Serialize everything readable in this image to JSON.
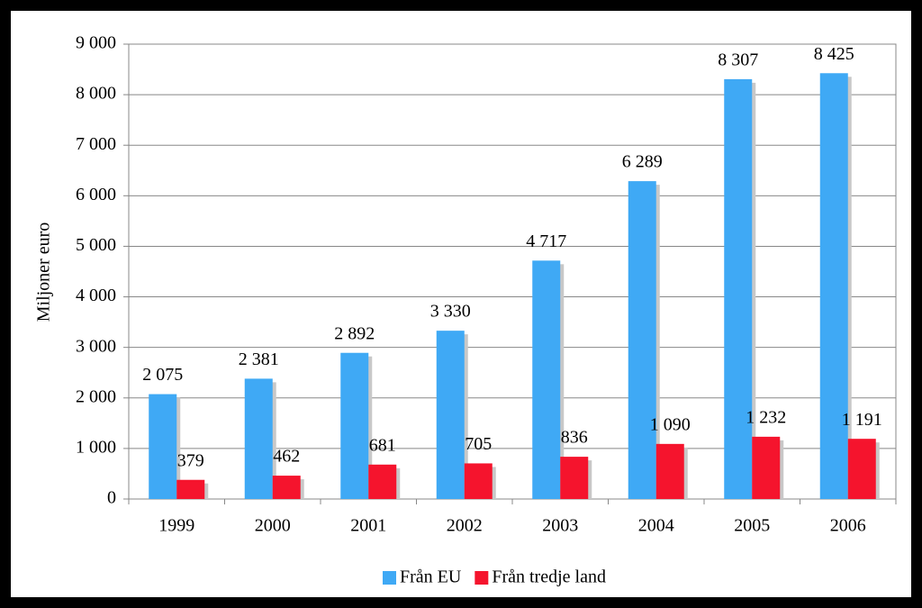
{
  "chart_data": {
    "type": "bar",
    "y_label": "Miljoner euro",
    "categories": [
      "1999",
      "2000",
      "2001",
      "2002",
      "2003",
      "2004",
      "2005",
      "2006"
    ],
    "series": [
      {
        "name": "Från EU",
        "color": "#3fa9f5",
        "values": [
          2075,
          2381,
          2892,
          3330,
          4717,
          6289,
          8307,
          8425
        ],
        "value_labels": [
          "2 075",
          "2 381",
          "2 892",
          "3 330",
          "4 717",
          "6 289",
          "8 307",
          "8 425"
        ]
      },
      {
        "name": "Från tredje land",
        "color": "#f5142d",
        "values": [
          379,
          462,
          681,
          705,
          836,
          1090,
          1232,
          1191
        ],
        "value_labels": [
          "379",
          "462",
          "681",
          "705",
          "836",
          "1 090",
          "1 232",
          "1 191"
        ]
      }
    ],
    "ylim": [
      0,
      9000
    ],
    "yticks": [
      0,
      {
        "value": 1000,
        "label": "1 000"
      },
      {
        "value": 2000,
        "label": "2 000"
      },
      {
        "value": 3000,
        "label": "3 000"
      },
      {
        "value": 4000,
        "label": "4 000"
      },
      {
        "value": 5000,
        "label": "5 000"
      },
      {
        "value": 6000,
        "label": "6 000"
      },
      {
        "value": 7000,
        "label": "7 000"
      },
      {
        "value": 8000,
        "label": "8 000"
      },
      {
        "value": 9000,
        "label": "9 000"
      }
    ],
    "grid": true,
    "legend": "bottom"
  }
}
